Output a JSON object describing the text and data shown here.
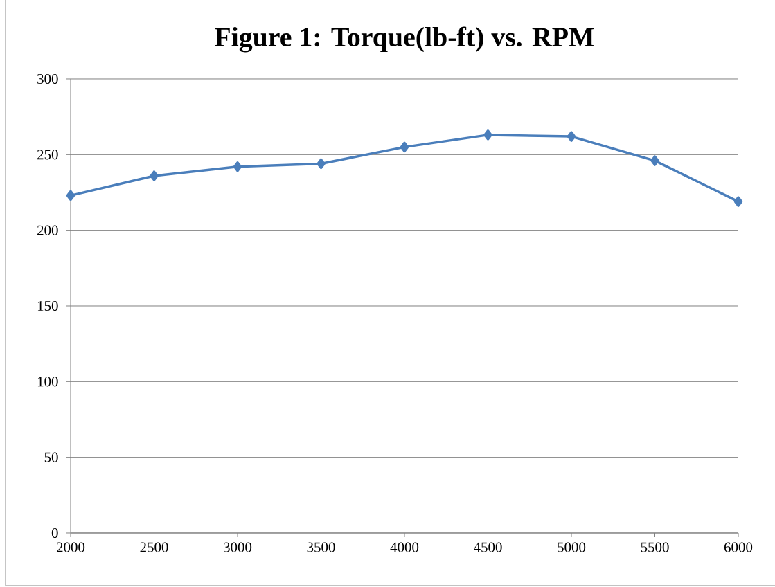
{
  "chart_data": {
    "type": "line",
    "title": "Figure 1: Torque(lb-ft) vs. RPM",
    "categories": [
      "2000",
      "2500",
      "3000",
      "3500",
      "4000",
      "4500",
      "5000",
      "5500",
      "6000"
    ],
    "series": [
      {
        "color": "#4a7ebb",
        "values": [
          223,
          236,
          242,
          244,
          255,
          263,
          262,
          246,
          219
        ]
      }
    ],
    "ylim": [
      0,
      300
    ],
    "yticks": [
      0,
      50,
      100,
      150,
      200,
      250,
      300
    ],
    "grid": "y",
    "legend": false,
    "marker": "diamond",
    "line_style": "solid"
  }
}
